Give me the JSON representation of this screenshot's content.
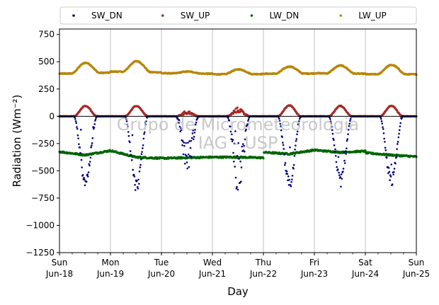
{
  "chart_data": {
    "type": "scatter",
    "title": "",
    "xlabel": "Day",
    "ylabel": "Radiation (Wm⁻²)",
    "ylim": [
      -1250,
      800
    ],
    "xlim": [
      0,
      7
    ],
    "y_ticks": [
      750,
      500,
      250,
      0,
      -250,
      -500,
      -750,
      -1000,
      -1250
    ],
    "y_tick_labels": [
      "750",
      "500",
      "250",
      "0",
      "−250",
      "−500",
      "−750",
      "−1000",
      "−1250"
    ],
    "x_ticks": [
      {
        "x": 0,
        "day": "Sun",
        "date": "Jun-18"
      },
      {
        "x": 1,
        "day": "Mon",
        "date": "Jun-19"
      },
      {
        "x": 2,
        "day": "Tue",
        "date": "Jun-20"
      },
      {
        "x": 3,
        "day": "Wed",
        "date": "Jun-21"
      },
      {
        "x": 4,
        "day": "Thu",
        "date": "Jun-22"
      },
      {
        "x": 5,
        "day": "Fri",
        "date": "Jun-23"
      },
      {
        "x": 6,
        "day": "Sat",
        "date": "Jun-24"
      },
      {
        "x": 7,
        "day": "Sun",
        "date": "Jun-25"
      }
    ],
    "grid": "vertical",
    "zero_line": true,
    "legend_placement": "top, above plot",
    "watermark": [
      "Grupo de Micrometeorologia",
      "IAG - USP"
    ],
    "series": [
      {
        "name": "SW_DN",
        "color": "#000080",
        "daily_peak": [
          -650,
          -700,
          -510,
          -730,
          -680,
          -650,
          -650
        ],
        "night_value": 0
      },
      {
        "name": "SW_UP",
        "color": "#a52a2a",
        "daily_peak": [
          95,
          95,
          50,
          80,
          100,
          95,
          95
        ],
        "night_value": 0
      },
      {
        "name": "LW_DN",
        "color": "#006400",
        "daily": [
          {
            "start": -325,
            "mid": -355,
            "end": -315
          },
          {
            "start": -315,
            "mid": -375,
            "end": -385
          },
          {
            "start": -385,
            "mid": -380,
            "end": -375
          },
          {
            "start": -375,
            "mid": -375,
            "end": -380
          },
          {
            "start": -330,
            "mid": -345,
            "end": -310
          },
          {
            "start": -310,
            "mid": -330,
            "end": -320
          },
          {
            "start": -335,
            "mid": -355,
            "end": -370
          }
        ]
      },
      {
        "name": "LW_UP",
        "color": "#b8860b",
        "night_values": [
          390,
          410,
          395,
          385,
          390,
          395,
          385
        ],
        "daily_peak": [
          490,
          505,
          410,
          430,
          455,
          465,
          470
        ]
      }
    ]
  }
}
